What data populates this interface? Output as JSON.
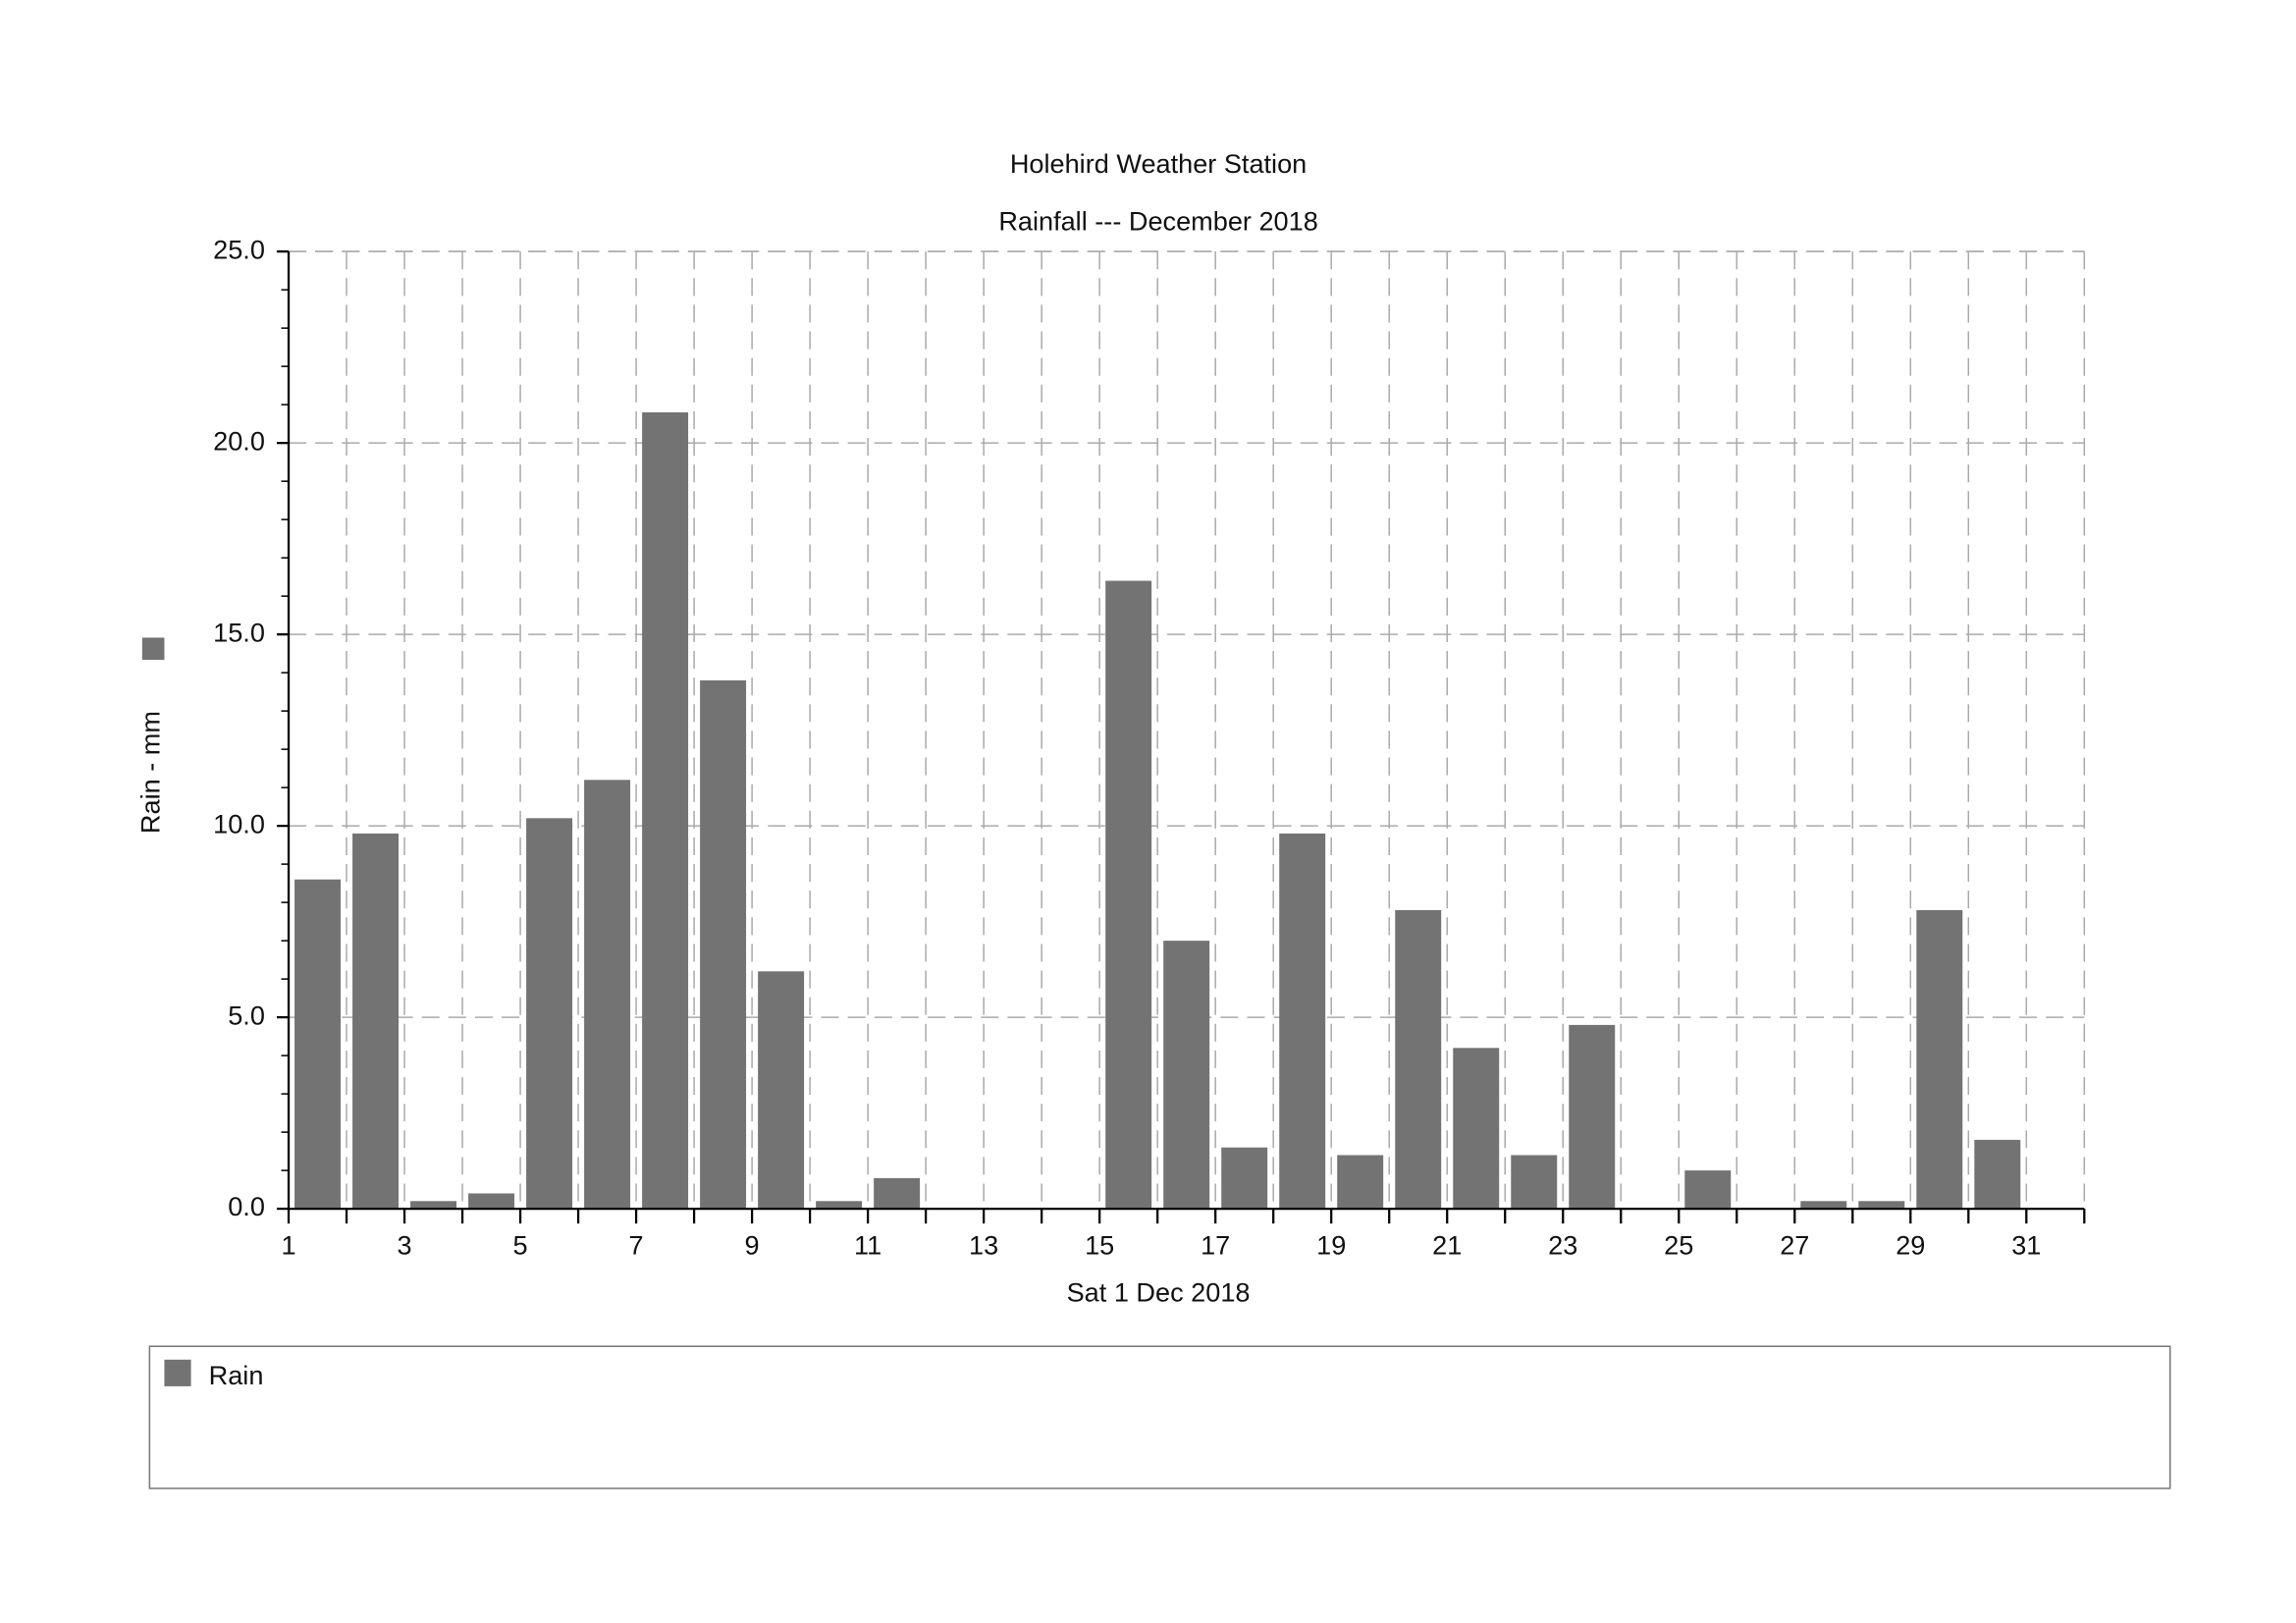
{
  "chart_data": {
    "type": "bar",
    "title": "Holehird Weather Station",
    "subtitle": "Rainfall --- December 2018",
    "x_label": "Sat 1 Dec 2018",
    "y_label": "Rain - mm",
    "x": [
      1,
      2,
      3,
      4,
      5,
      6,
      7,
      8,
      9,
      10,
      11,
      12,
      13,
      14,
      15,
      16,
      17,
      18,
      19,
      20,
      21,
      22,
      23,
      24,
      25,
      26,
      27,
      28,
      29,
      30,
      31
    ],
    "series": [
      {
        "name": "Rain",
        "color": "#737373",
        "values": [
          8.6,
          9.8,
          0.2,
          0.4,
          10.2,
          11.2,
          20.8,
          13.8,
          6.2,
          0.2,
          0.8,
          0,
          0,
          0,
          16.4,
          7.0,
          1.6,
          9.8,
          1.4,
          7.8,
          4.2,
          1.4,
          4.8,
          0,
          1.0,
          0,
          0.2,
          0.2,
          7.8,
          1.8,
          0
        ]
      }
    ],
    "xlim": [
      1,
      32
    ],
    "xticks": [
      1,
      3,
      5,
      7,
      9,
      11,
      13,
      15,
      17,
      19,
      21,
      23,
      25,
      27,
      29,
      31
    ],
    "ylim": [
      0,
      25
    ],
    "yticks": [
      {
        "value": 0,
        "label": "0.0"
      },
      {
        "value": 5,
        "label": "5.0"
      },
      {
        "value": 10,
        "label": "10.0"
      },
      {
        "value": 15,
        "label": "15.0"
      },
      {
        "value": 20,
        "label": "20.0"
      },
      {
        "value": 25,
        "label": "25.0"
      }
    ],
    "grid": true
  }
}
